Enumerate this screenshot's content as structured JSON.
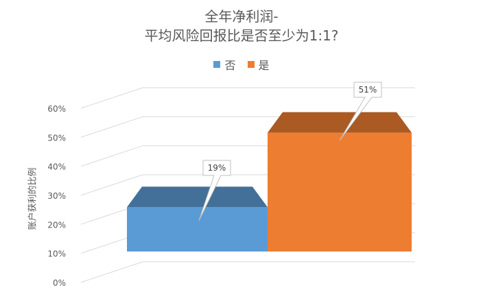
{
  "chart_data": {
    "type": "bar",
    "title": [
      "全年净利润-",
      "平均风险回报比是否至少为1:1?"
    ],
    "ylabel": "账户获利的比例",
    "ylim": [
      0,
      60
    ],
    "yticks": [
      "0%",
      "10%",
      "20%",
      "30%",
      "40%",
      "50%",
      "60%"
    ],
    "grid": true,
    "legend_placement": "top",
    "categories": [
      "否",
      "是"
    ],
    "values": [
      19,
      51
    ],
    "data_labels": [
      "19%",
      "51%"
    ],
    "series": [
      {
        "name": "否",
        "value": 19,
        "color": "#5B9BD5"
      },
      {
        "name": "是",
        "value": 51,
        "color": "#ED7D31"
      }
    ]
  }
}
